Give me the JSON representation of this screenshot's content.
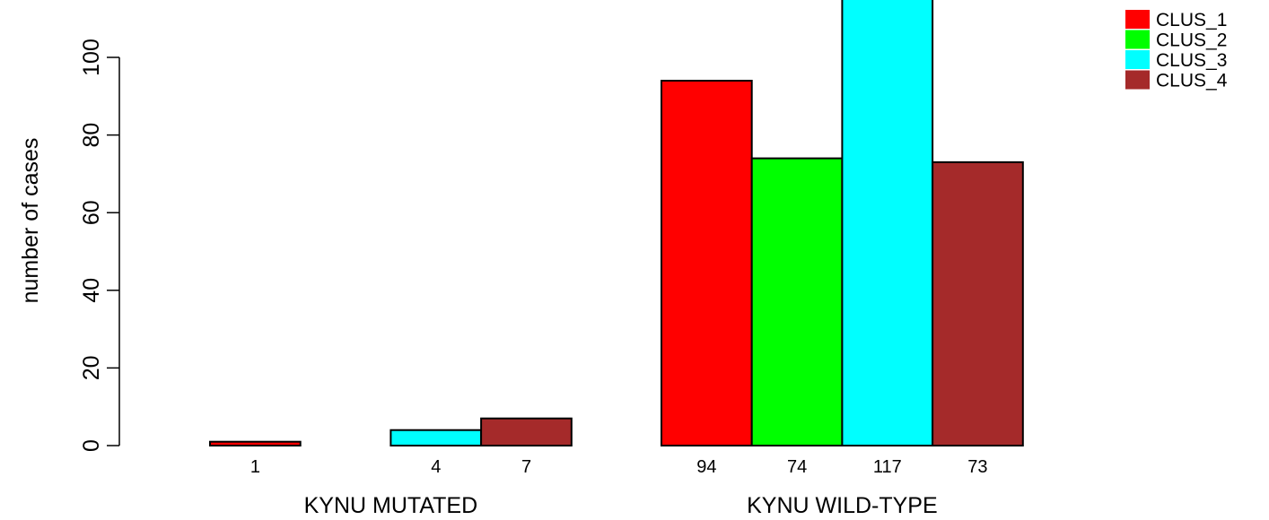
{
  "chart_data": {
    "type": "bar",
    "ylabel": "number of cases",
    "xlabel": "",
    "ylim": [
      0,
      117
    ],
    "yticks": [
      0,
      20,
      40,
      60,
      80,
      100
    ],
    "groups": [
      "KYNU MUTATED",
      "KYNU WILD-TYPE"
    ],
    "series": [
      {
        "name": "CLUS_1",
        "color": "#ff0000",
        "values": [
          1,
          94
        ]
      },
      {
        "name": "CLUS_2",
        "color": "#00ff00",
        "values": [
          0,
          74
        ]
      },
      {
        "name": "CLUS_3",
        "color": "#00ffff",
        "values": [
          4,
          117
        ]
      },
      {
        "name": "CLUS_4",
        "color": "#a52a2a",
        "values": [
          7,
          73
        ]
      }
    ],
    "bar_labels": [
      [
        "1",
        "",
        "4",
        "7"
      ],
      [
        "94",
        "74",
        "117",
        "73"
      ]
    ],
    "legend_position": "top-right",
    "grid": false
  }
}
